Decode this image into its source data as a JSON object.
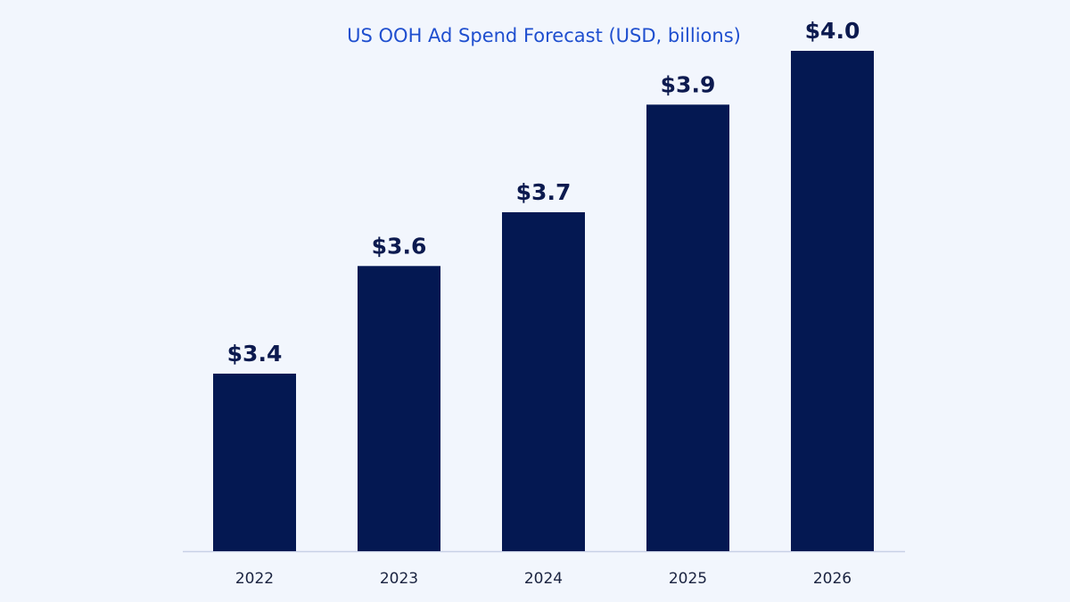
{
  "chart_data": {
    "type": "bar",
    "title": "US OOH Ad Spend Forecast (USD, billions)",
    "xlabel": "",
    "ylabel": "",
    "categories": [
      "2022",
      "2023",
      "2024",
      "2025",
      "2026"
    ],
    "values": [
      3.4,
      3.6,
      3.7,
      3.9,
      4.0
    ],
    "data_labels": [
      "$3.4",
      "$3.6",
      "$3.7",
      "$3.9",
      "$4.0"
    ],
    "ylim": [
      3.07,
      4.0
    ],
    "grid": false,
    "legend": "none",
    "colors": {
      "bar": "#041852",
      "background": "#f2f6fd",
      "title": "#1f4fcf",
      "axis": "#c8d0e6"
    }
  }
}
